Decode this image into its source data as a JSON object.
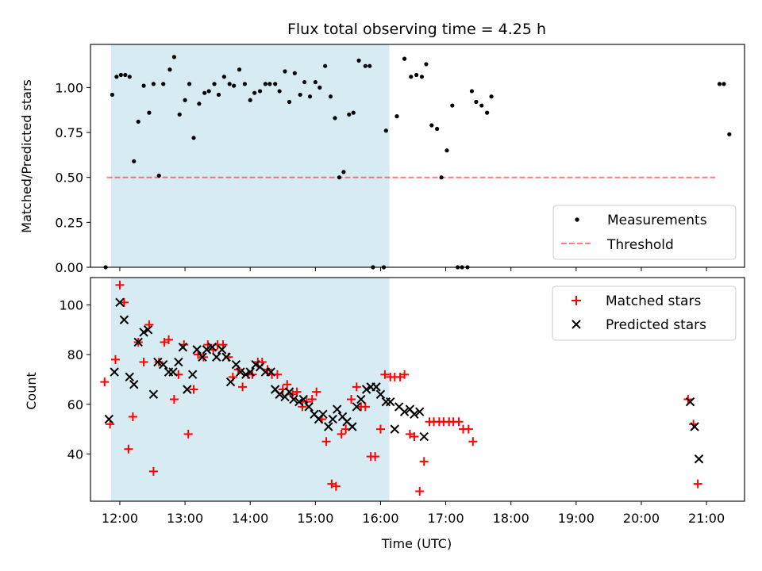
{
  "chart_data": [
    {
      "type": "scatter",
      "title": "Flux total observing time = 4.25 h",
      "ylabel": "Matched/Predicted stars",
      "xlabel": "",
      "ylim": [
        0,
        1.24
      ],
      "yticks": [
        0.0,
        0.25,
        0.5,
        0.75,
        1.0
      ],
      "ytick_labels": [
        "0.00",
        "0.25",
        "0.50",
        "0.75",
        "1.00"
      ],
      "xlim": [
        "11:33",
        "21:35"
      ],
      "shaded_span": [
        "11:52",
        "16:08"
      ],
      "shaded_color": "#add8e6",
      "threshold": {
        "name": "Threshold",
        "value": 0.5,
        "x_range": [
          "11:48",
          "21:08"
        ],
        "color": "#ff0000"
      },
      "legend_position": "lower right",
      "series": [
        {
          "name": "Measurements",
          "marker": "dot",
          "color": "#000000",
          "points": [
            [
              "11:47",
              0.0
            ],
            [
              "11:53",
              0.96
            ],
            [
              "11:57",
              1.06
            ],
            [
              "12:01",
              1.07
            ],
            [
              "12:05",
              1.07
            ],
            [
              "12:09",
              1.06
            ],
            [
              "12:13",
              0.59
            ],
            [
              "12:17",
              0.81
            ],
            [
              "12:22",
              1.01
            ],
            [
              "12:27",
              0.86
            ],
            [
              "12:31",
              1.02
            ],
            [
              "12:36",
              0.51
            ],
            [
              "12:40",
              1.02
            ],
            [
              "12:46",
              1.1
            ],
            [
              "12:50",
              1.17
            ],
            [
              "12:55",
              0.85
            ],
            [
              "13:00",
              0.93
            ],
            [
              "13:04",
              1.02
            ],
            [
              "13:08",
              0.72
            ],
            [
              "13:13",
              0.91
            ],
            [
              "13:18",
              0.97
            ],
            [
              "13:22",
              0.98
            ],
            [
              "13:27",
              1.02
            ],
            [
              "13:31",
              0.96
            ],
            [
              "13:36",
              1.06
            ],
            [
              "13:41",
              1.02
            ],
            [
              "13:45",
              1.01
            ],
            [
              "13:50",
              1.1
            ],
            [
              "13:55",
              1.02
            ],
            [
              "14:00",
              0.93
            ],
            [
              "14:04",
              0.97
            ],
            [
              "14:09",
              0.98
            ],
            [
              "14:14",
              1.02
            ],
            [
              "14:18",
              1.02
            ],
            [
              "14:23",
              1.02
            ],
            [
              "14:27",
              0.98
            ],
            [
              "14:32",
              1.09
            ],
            [
              "14:36",
              0.92
            ],
            [
              "14:41",
              1.08
            ],
            [
              "14:46",
              0.96
            ],
            [
              "14:50",
              1.03
            ],
            [
              "14:55",
              0.95
            ],
            [
              "15:00",
              1.03
            ],
            [
              "15:04",
              1.0
            ],
            [
              "15:09",
              1.12
            ],
            [
              "15:14",
              0.95
            ],
            [
              "15:18",
              0.83
            ],
            [
              "15:22",
              0.5
            ],
            [
              "15:26",
              0.53
            ],
            [
              "15:31",
              0.85
            ],
            [
              "15:35",
              0.86
            ],
            [
              "15:40",
              1.15
            ],
            [
              "15:46",
              1.12
            ],
            [
              "15:50",
              1.12
            ],
            [
              "15:53",
              0.0
            ],
            [
              "16:03",
              0.0
            ],
            [
              "16:05",
              0.76
            ],
            [
              "16:15",
              0.84
            ],
            [
              "16:22",
              1.16
            ],
            [
              "16:28",
              1.06
            ],
            [
              "16:33",
              1.07
            ],
            [
              "16:38",
              1.06
            ],
            [
              "16:42",
              1.13
            ],
            [
              "16:47",
              0.79
            ],
            [
              "16:52",
              0.77
            ],
            [
              "16:56",
              0.5
            ],
            [
              "17:01",
              0.65
            ],
            [
              "17:06",
              0.9
            ],
            [
              "17:11",
              0.0
            ],
            [
              "17:15",
              0.0
            ],
            [
              "17:20",
              0.0
            ],
            [
              "17:24",
              0.98
            ],
            [
              "17:28",
              0.92
            ],
            [
              "17:33",
              0.9
            ],
            [
              "17:38",
              0.86
            ],
            [
              "17:42",
              0.95
            ],
            [
              "21:12",
              1.02
            ],
            [
              "21:16",
              1.02
            ],
            [
              "21:21",
              0.74
            ]
          ]
        }
      ]
    },
    {
      "type": "scatter",
      "title": "",
      "ylabel": "Count",
      "xlabel": "Time (UTC)",
      "ylim": [
        21,
        111
      ],
      "yticks": [
        40,
        60,
        80,
        100
      ],
      "ytick_labels": [
        "40",
        "60",
        "80",
        "100"
      ],
      "xlim": [
        "11:33",
        "21:35"
      ],
      "xticks": [
        "12:00",
        "13:00",
        "14:00",
        "15:00",
        "16:00",
        "17:00",
        "18:00",
        "19:00",
        "20:00",
        "21:00"
      ],
      "shaded_span": [
        "11:52",
        "16:08"
      ],
      "shaded_color": "#add8e6",
      "legend_position": "upper right",
      "series": [
        {
          "name": "Matched stars",
          "marker": "plus",
          "color": "#ff0000",
          "points": [
            [
              "11:46",
              69
            ],
            [
              "11:51",
              52
            ],
            [
              "11:56",
              78
            ],
            [
              "12:00",
              108
            ],
            [
              "12:04",
              101
            ],
            [
              "12:08",
              42
            ],
            [
              "12:12",
              55
            ],
            [
              "12:17",
              85
            ],
            [
              "12:22",
              77
            ],
            [
              "12:27",
              92
            ],
            [
              "12:31",
              33
            ],
            [
              "12:36",
              77
            ],
            [
              "12:41",
              85
            ],
            [
              "12:45",
              86
            ],
            [
              "12:50",
              62
            ],
            [
              "12:54",
              72
            ],
            [
              "12:59",
              84
            ],
            [
              "13:03",
              48
            ],
            [
              "13:08",
              66
            ],
            [
              "13:12",
              80
            ],
            [
              "13:17",
              79
            ],
            [
              "13:21",
              84
            ],
            [
              "13:26",
              82
            ],
            [
              "13:30",
              84
            ],
            [
              "13:35",
              84
            ],
            [
              "13:40",
              79
            ],
            [
              "13:44",
              71
            ],
            [
              "13:49",
              74
            ],
            [
              "13:53",
              67
            ],
            [
              "13:58",
              72
            ],
            [
              "14:02",
              72
            ],
            [
              "14:07",
              77
            ],
            [
              "14:11",
              77
            ],
            [
              "14:16",
              74
            ],
            [
              "14:20",
              72
            ],
            [
              "14:25",
              72
            ],
            [
              "14:30",
              66
            ],
            [
              "14:34",
              68
            ],
            [
              "14:39",
              64
            ],
            [
              "14:43",
              65
            ],
            [
              "14:48",
              59
            ],
            [
              "14:52",
              61
            ],
            [
              "14:57",
              62
            ],
            [
              "15:01",
              65
            ],
            [
              "15:06",
              54
            ],
            [
              "15:10",
              45
            ],
            [
              "15:15",
              28
            ],
            [
              "15:19",
              27
            ],
            [
              "15:24",
              48
            ],
            [
              "15:28",
              50
            ],
            [
              "15:33",
              62
            ],
            [
              "15:38",
              67
            ],
            [
              "15:42",
              59
            ],
            [
              "15:46",
              59
            ],
            [
              "15:51",
              39
            ],
            [
              "15:55",
              39
            ],
            [
              "16:00",
              50
            ],
            [
              "16:04",
              72
            ],
            [
              "16:09",
              71
            ],
            [
              "16:13",
              71
            ],
            [
              "16:18",
              71
            ],
            [
              "16:22",
              72
            ],
            [
              "16:27",
              48
            ],
            [
              "16:31",
              47
            ],
            [
              "16:36",
              25
            ],
            [
              "16:40",
              37
            ],
            [
              "16:45",
              53
            ],
            [
              "16:49",
              53
            ],
            [
              "16:54",
              53
            ],
            [
              "16:58",
              53
            ],
            [
              "17:03",
              53
            ],
            [
              "17:07",
              53
            ],
            [
              "17:12",
              53
            ],
            [
              "17:16",
              50
            ],
            [
              "17:21",
              50
            ],
            [
              "17:25",
              45
            ],
            [
              "20:43",
              62
            ],
            [
              "20:48",
              52
            ],
            [
              "20:52",
              28
            ]
          ]
        },
        {
          "name": "Predicted stars",
          "marker": "cross",
          "color": "#000000",
          "points": [
            [
              "11:50",
              54
            ],
            [
              "11:55",
              73
            ],
            [
              "12:00",
              101
            ],
            [
              "12:04",
              94
            ],
            [
              "12:09",
              71
            ],
            [
              "12:13",
              68
            ],
            [
              "12:17",
              85
            ],
            [
              "12:22",
              89
            ],
            [
              "12:26",
              90
            ],
            [
              "12:31",
              64
            ],
            [
              "12:35",
              77
            ],
            [
              "12:40",
              76
            ],
            [
              "12:45",
              73
            ],
            [
              "12:49",
              73
            ],
            [
              "12:54",
              77
            ],
            [
              "12:58",
              83
            ],
            [
              "13:02",
              66
            ],
            [
              "13:07",
              72
            ],
            [
              "13:11",
              82
            ],
            [
              "13:16",
              79
            ],
            [
              "13:20",
              82
            ],
            [
              "13:25",
              83
            ],
            [
              "13:29",
              79
            ],
            [
              "13:34",
              82
            ],
            [
              "13:38",
              79
            ],
            [
              "13:42",
              69
            ],
            [
              "13:47",
              76
            ],
            [
              "13:51",
              73
            ],
            [
              "13:56",
              72
            ],
            [
              "14:00",
              73
            ],
            [
              "14:05",
              76
            ],
            [
              "14:09",
              75
            ],
            [
              "14:14",
              73
            ],
            [
              "14:19",
              73
            ],
            [
              "14:23",
              66
            ],
            [
              "14:27",
              64
            ],
            [
              "14:32",
              63
            ],
            [
              "14:36",
              65
            ],
            [
              "14:40",
              62
            ],
            [
              "14:45",
              61
            ],
            [
              "14:49",
              62
            ],
            [
              "14:54",
              59
            ],
            [
              "14:59",
              56
            ],
            [
              "15:03",
              54
            ],
            [
              "15:07",
              56
            ],
            [
              "15:12",
              51
            ],
            [
              "15:16",
              54
            ],
            [
              "15:20",
              58
            ],
            [
              "15:25",
              55
            ],
            [
              "15:29",
              53
            ],
            [
              "15:34",
              51
            ],
            [
              "15:38",
              59
            ],
            [
              "15:42",
              62
            ],
            [
              "15:47",
              66
            ],
            [
              "15:51",
              67
            ],
            [
              "15:56",
              67
            ],
            [
              "16:00",
              64
            ],
            [
              "16:05",
              61
            ],
            [
              "16:09",
              61
            ],
            [
              "16:13",
              50
            ],
            [
              "16:17",
              59
            ],
            [
              "16:22",
              57
            ],
            [
              "16:27",
              58
            ],
            [
              "16:31",
              56
            ],
            [
              "16:36",
              57
            ],
            [
              "16:40",
              47
            ],
            [
              "20:45",
              61
            ],
            [
              "20:49",
              51
            ],
            [
              "20:53",
              38
            ]
          ]
        }
      ]
    }
  ]
}
